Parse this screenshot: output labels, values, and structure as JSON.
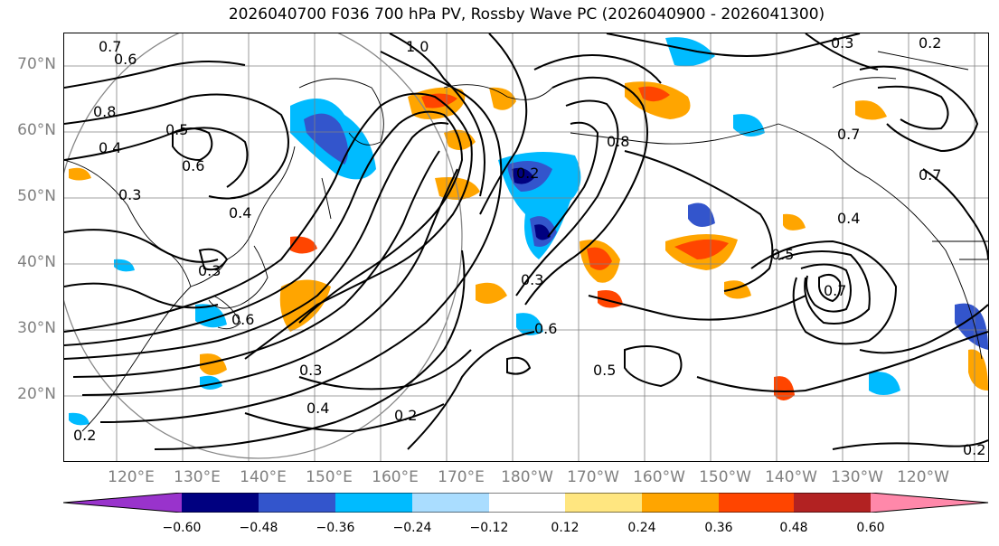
{
  "title": "2026040700 F036 700 hPa PV, Rossby Wave PC (2026040900 - 2026041300)",
  "map": {
    "projection": "equirectangular",
    "lon_range": [
      112,
      252
    ],
    "lat_range": [
      10,
      75
    ],
    "lat_labels": [
      "70°N",
      "60°N",
      "50°N",
      "40°N",
      "30°N",
      "20°N"
    ],
    "lat_values": [
      70,
      60,
      50,
      40,
      30,
      20
    ],
    "lon_labels": [
      "120°E",
      "130°E",
      "140°E",
      "150°E",
      "160°E",
      "170°E",
      "180°W",
      "170°W",
      "160°W",
      "150°W",
      "140°W",
      "130°W",
      "120°W"
    ],
    "lon_values": [
      120,
      130,
      140,
      150,
      160,
      170,
      180,
      190,
      200,
      210,
      220,
      230,
      240
    ],
    "contour_labels": [
      "0.7",
      "0.6",
      "1.0",
      "0.3",
      "0.2",
      "0.8",
      "0.5",
      "0.4",
      "0.6",
      "0.4",
      "0.3",
      "0.2",
      "0.8",
      "0.7",
      "0.4",
      "0.5",
      "0.3",
      "0.7",
      "0.6",
      "0.3",
      "0.5",
      "0.4",
      "0.3",
      "0.2",
      "0.2",
      "0.7",
      "0.6",
      "0.2"
    ]
  },
  "colorbar": {
    "colors": [
      "#9933cc",
      "#000080",
      "#3355cc",
      "#00bbff",
      "#aaddff",
      "#ffffff",
      "#ffe680",
      "#ffa500",
      "#ff4500",
      "#b22222",
      "#ff88aa"
    ],
    "ticks": [
      "−0.60",
      "−0.48",
      "−0.36",
      "−0.24",
      "−0.12",
      "0.12",
      "0.24",
      "0.36",
      "0.48",
      "0.60"
    ],
    "tick_values": [
      -0.6,
      -0.48,
      -0.36,
      -0.24,
      -0.12,
      0.12,
      0.24,
      0.36,
      0.48,
      0.6
    ],
    "extend": "both"
  }
}
